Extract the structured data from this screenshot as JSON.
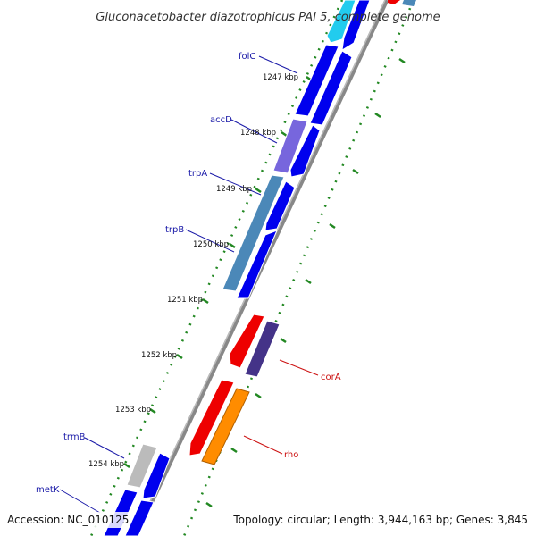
{
  "title": "Gluconacetobacter diazotrophicus PAI 5, complete genome",
  "footer": {
    "accession": "Accession: NC_010125",
    "summary": "Topology: circular; Length: 3,944,163 bp; Genes: 3,845"
  },
  "kbp_ticks": [
    "1247 kbp",
    "1248 kbp",
    "1249 kbp",
    "1250 kbp",
    "1251 kbp",
    "1252 kbp",
    "1253 kbp",
    "1254 kbp"
  ],
  "gene_labels_left": [
    "folC",
    "accD",
    "trpA",
    "trpB",
    "trmB",
    "metK"
  ],
  "gene_labels_right": [
    "corA",
    "rho"
  ],
  "colors": {
    "forward_gene": "#0000ee",
    "reverse_gene": "#0000ee",
    "cyan_gene": "#22ccee",
    "steel_gene": "#4b88b8",
    "purple_gene": "#7766dd",
    "red_gene": "#ee0000",
    "navy_gene": "#443388",
    "orange_gene": "#ff8c00",
    "gray_gene": "#bbbbbb",
    "backbone": "#777777",
    "tick_marks": "#228822",
    "label_left": "#1a1aa8",
    "label_right": "#cc1111"
  }
}
